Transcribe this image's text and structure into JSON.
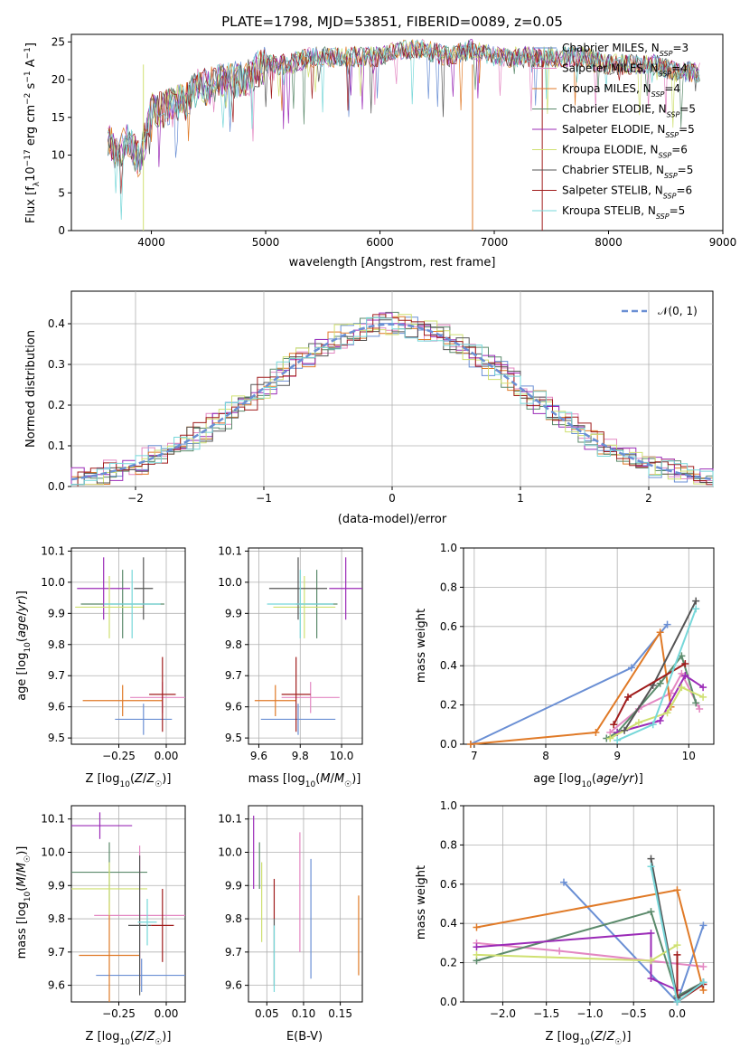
{
  "chart_data": [
    {
      "type": "line",
      "title": "PLATE=1798, MJD=53851, FIBERID=0089, z=0.05",
      "xlabel": "wavelength [Angstrom, rest frame]",
      "ylabel": "Flux [f$_\\lambda$10$^{-17}$ erg cm$^{-2}$ s$^{-1}$ A$^{-1}$]",
      "xlim": [
        3300,
        9000
      ],
      "ylim": [
        0,
        26
      ],
      "xticks": [
        4000,
        5000,
        6000,
        7000,
        8000,
        9000
      ],
      "yticks": [
        0,
        5,
        10,
        15,
        20,
        25
      ],
      "legend_position": "right",
      "note_series": "model spectra, approximate envelope",
      "wave": [
        3600,
        3700,
        3800,
        3900,
        4000,
        4100,
        4200,
        4300,
        4400,
        4500,
        4600,
        4700,
        4800,
        4900,
        5000,
        5200,
        5400,
        5600,
        5800,
        6000,
        6200,
        6400,
        6600,
        6800,
        7000,
        7200,
        7400,
        7600,
        7800,
        8000,
        8200,
        8400,
        8600,
        8800
      ],
      "flux": [
        13,
        10,
        12,
        9,
        16,
        16,
        17,
        17,
        19,
        19,
        20,
        20,
        20,
        21,
        22,
        22,
        23,
        23,
        23,
        23,
        24,
        24,
        23,
        24,
        23,
        23,
        23,
        23,
        23,
        22,
        22,
        22,
        21,
        21
      ],
      "series": [
        {
          "name": "Chabrier MILES, N$_{SSP}$=3",
          "color": "#6a8fd4"
        },
        {
          "name": "Salpeter MILES, N$_{SSP}$=4",
          "color": "#e387c2"
        },
        {
          "name": "Kroupa MILES, N$_{SSP}$=4",
          "color": "#e07a27"
        },
        {
          "name": "Chabrier ELODIE, N$_{SSP}$=5",
          "color": "#5b8a6b"
        },
        {
          "name": "Salpeter ELODIE, N$_{SSP}$=5",
          "color": "#9b2bb7"
        },
        {
          "name": "Kroupa ELODIE, N$_{SSP}$=6",
          "color": "#cfe071"
        },
        {
          "name": "Chabrier STELIB, N$_{SSP}$=5",
          "color": "#555555"
        },
        {
          "name": "Salpeter STELIB, N$_{SSP}$=6",
          "color": "#a01c1c"
        },
        {
          "name": "Kroupa STELIB, N$_{SSP}$=5",
          "color": "#76d7d9"
        }
      ]
    },
    {
      "type": "line",
      "xlabel": "(data-model)/error",
      "ylabel": "Normed distribution",
      "xlim": [
        -2.5,
        2.5
      ],
      "ylim": [
        0,
        0.48
      ],
      "xticks": [
        -2,
        -1,
        0,
        1,
        2
      ],
      "yticks": [
        0.0,
        0.1,
        0.2,
        0.3,
        0.4
      ],
      "legend": "$\\mathcal{N}(0,1)$",
      "legend_position": "top-right",
      "grid": true,
      "bin_centers": [
        -2.4,
        -2.2,
        -2.0,
        -1.8,
        -1.6,
        -1.4,
        -1.2,
        -1.0,
        -0.8,
        -0.6,
        -0.4,
        -0.2,
        0.0,
        0.2,
        0.4,
        0.6,
        0.8,
        1.0,
        1.2,
        1.4,
        1.6,
        1.8,
        2.0,
        2.2,
        2.4
      ],
      "hist_values": [
        0.02,
        0.04,
        0.06,
        0.08,
        0.12,
        0.17,
        0.21,
        0.25,
        0.3,
        0.34,
        0.37,
        0.39,
        0.41,
        0.4,
        0.4,
        0.36,
        0.33,
        0.28,
        0.22,
        0.17,
        0.13,
        0.09,
        0.06,
        0.04,
        0.03
      ]
    },
    {
      "type": "scatter",
      "xlabel": "Z [log$_{10}$($Z/Z_\\odot$)]",
      "ylabel": "age  [log$_{10}$($age/yr$)]",
      "xlim": [
        -0.5,
        0.1
      ],
      "ylim": [
        9.48,
        10.11
      ],
      "xticks": [
        -0.25,
        0.0
      ],
      "yticks": [
        9.5,
        9.6,
        9.7,
        9.8,
        9.9,
        10.0,
        10.1
      ],
      "grid": true,
      "points": [
        {
          "x": -0.12,
          "y": 9.56,
          "xerr": 0.15,
          "yerr": 0.05
        },
        {
          "x": -0.02,
          "y": 9.63,
          "xerr": 0.17,
          "yerr": 0.05
        },
        {
          "x": -0.23,
          "y": 9.62,
          "xerr": 0.21,
          "yerr": 0.05
        },
        {
          "x": -0.23,
          "y": 9.93,
          "xerr": 0.22,
          "yerr": 0.11
        },
        {
          "x": -0.33,
          "y": 9.98,
          "xerr": 0.14,
          "yerr": 0.1
        },
        {
          "x": -0.3,
          "y": 9.92,
          "xerr": 0.18,
          "yerr": 0.1
        },
        {
          "x": -0.12,
          "y": 9.98,
          "xerr": 0.05,
          "yerr": 0.1
        },
        {
          "x": -0.02,
          "y": 9.64,
          "xerr": 0.07,
          "yerr": 0.12
        },
        {
          "x": -0.18,
          "y": 9.93,
          "xerr": 0.15,
          "yerr": 0.11
        }
      ]
    },
    {
      "type": "scatter",
      "xlabel": "mass [log$_{10}$($M/M_\\odot$)]",
      "ylabel": "",
      "xlim": [
        9.55,
        10.1
      ],
      "ylim": [
        9.48,
        10.11
      ],
      "xticks": [
        9.6,
        9.8,
        10.0
      ],
      "yticks": [
        9.5,
        9.6,
        9.7,
        9.8,
        9.9,
        10.0,
        10.1
      ],
      "grid": true,
      "points": [
        {
          "x": 9.79,
          "y": 9.56,
          "xerr": 0.18,
          "yerr": 0.05
        },
        {
          "x": 9.85,
          "y": 9.63,
          "xerr": 0.14,
          "yerr": 0.05
        },
        {
          "x": 9.68,
          "y": 9.62,
          "xerr": 0.1,
          "yerr": 0.05
        },
        {
          "x": 9.88,
          "y": 9.93,
          "xerr": 0.1,
          "yerr": 0.11
        },
        {
          "x": 10.02,
          "y": 9.98,
          "xerr": 0.08,
          "yerr": 0.1
        },
        {
          "x": 9.82,
          "y": 9.92,
          "xerr": 0.15,
          "yerr": 0.1
        },
        {
          "x": 9.79,
          "y": 9.98,
          "xerr": 0.14,
          "yerr": 0.1
        },
        {
          "x": 9.78,
          "y": 9.64,
          "xerr": 0.07,
          "yerr": 0.12
        },
        {
          "x": 9.8,
          "y": 9.93,
          "xerr": 0.16,
          "yerr": 0.11
        }
      ]
    },
    {
      "type": "line",
      "xlabel": "age  [log$_{10}$($age/yr$)]",
      "ylabel": "mass weight",
      "xlim": [
        6.85,
        10.35
      ],
      "ylim": [
        0,
        1
      ],
      "xticks": [
        7,
        8,
        9,
        10
      ],
      "yticks": [
        0.0,
        0.2,
        0.4,
        0.6,
        0.8,
        1.0
      ],
      "grid": true,
      "series": [
        {
          "x": [
            6.95,
            9.2,
            9.7
          ],
          "y": [
            0.0,
            0.39,
            0.61
          ]
        },
        {
          "x": [
            8.9,
            9.3,
            9.75,
            9.9,
            10.15
          ],
          "y": [
            0.06,
            0.18,
            0.26,
            0.36,
            0.18
          ]
        },
        {
          "x": [
            6.95,
            8.7,
            9.6,
            9.75
          ],
          "y": [
            0.0,
            0.06,
            0.57,
            0.19
          ]
        },
        {
          "x": [
            8.85,
            9.0,
            9.6,
            9.9,
            10.1
          ],
          "y": [
            0.03,
            0.06,
            0.31,
            0.45,
            0.21
          ]
        },
        {
          "x": [
            9.0,
            9.6,
            9.95,
            10.2
          ],
          "y": [
            0.06,
            0.12,
            0.35,
            0.29
          ]
        },
        {
          "x": [
            8.9,
            9.3,
            9.7,
            9.9,
            10.2
          ],
          "y": [
            0.03,
            0.11,
            0.16,
            0.29,
            0.24
          ]
        },
        {
          "x": [
            9.1,
            9.5,
            10.1
          ],
          "y": [
            0.07,
            0.3,
            0.73
          ]
        },
        {
          "x": [
            8.95,
            9.15,
            9.95
          ],
          "y": [
            0.1,
            0.24,
            0.41
          ]
        },
        {
          "x": [
            9.0,
            9.5,
            10.1
          ],
          "y": [
            0.02,
            0.1,
            0.69
          ]
        }
      ]
    },
    {
      "type": "scatter",
      "xlabel": "Z [log$_{10}$($Z/Z_\\odot$)]",
      "ylabel": "mass [log$_{10}$($M/M_\\odot$)]",
      "xlim": [
        -0.5,
        0.1
      ],
      "ylim": [
        9.55,
        10.14
      ],
      "xticks": [
        -0.25,
        0.0
      ],
      "yticks": [
        9.6,
        9.7,
        9.8,
        9.9,
        10.0,
        10.1
      ],
      "grid": true,
      "points": [
        {
          "x": -0.13,
          "y": 9.63,
          "xerr": 0.24,
          "yerr": 0.05
        },
        {
          "x": -0.14,
          "y": 9.81,
          "xerr": 0.24,
          "yerr": 0.21
        },
        {
          "x": -0.3,
          "y": 9.69,
          "xerr": 0.16,
          "yerr": 0.16
        },
        {
          "x": -0.3,
          "y": 9.94,
          "xerr": 0.2,
          "yerr": 0.09
        },
        {
          "x": -0.35,
          "y": 10.08,
          "xerr": 0.17,
          "yerr": 0.04
        },
        {
          "x": -0.3,
          "y": 9.89,
          "xerr": 0.2,
          "yerr": 0.08
        },
        {
          "x": -0.14,
          "y": 9.78,
          "xerr": 0.06,
          "yerr": 0.21
        },
        {
          "x": -0.02,
          "y": 9.78,
          "xerr": 0.06,
          "yerr": 0.11
        },
        {
          "x": -0.1,
          "y": 9.79,
          "xerr": 0.05,
          "yerr": 0.07
        }
      ]
    },
    {
      "type": "scatter",
      "xlabel": "E(B-V)",
      "ylabel": "",
      "xlim": [
        0.025,
        0.18
      ],
      "ylim": [
        9.55,
        10.14
      ],
      "xticks": [
        0.05,
        0.1,
        0.15
      ],
      "yticks": [
        9.6,
        9.7,
        9.8,
        9.9,
        10.0,
        10.1
      ],
      "grid": true,
      "points": [
        {
          "x": 0.11,
          "y": 9.8,
          "yerr": 0.18
        },
        {
          "x": 0.095,
          "y": 9.88,
          "yerr": 0.18
        },
        {
          "x": 0.175,
          "y": 9.75,
          "yerr": 0.12
        },
        {
          "x": 0.04,
          "y": 9.96,
          "yerr": 0.07
        },
        {
          "x": 0.032,
          "y": 10.0,
          "yerr": 0.11
        },
        {
          "x": 0.043,
          "y": 9.85,
          "yerr": 0.12
        },
        {
          "x": 0.06,
          "y": 9.7,
          "yerr": 0.1
        },
        {
          "x": 0.06,
          "y": 9.86,
          "yerr": 0.06
        },
        {
          "x": 0.06,
          "y": 9.68,
          "yerr": 0.1
        }
      ]
    },
    {
      "type": "line",
      "xlabel": "Z [log$_{10}$($Z/Z_\\odot$)]",
      "ylabel": "mass weight",
      "xlim": [
        -2.45,
        0.42
      ],
      "ylim": [
        0,
        1
      ],
      "xticks": [
        -2.0,
        -1.5,
        -1.0,
        -0.5,
        0.0
      ],
      "yticks": [
        0.0,
        0.2,
        0.4,
        0.6,
        0.8,
        1.0
      ],
      "grid": true,
      "series": [
        {
          "x": [
            -1.3,
            0.0,
            0.3
          ],
          "y": [
            0.61,
            0.0,
            0.39
          ]
        },
        {
          "x": [
            -2.3,
            -1.35,
            0.3
          ],
          "y": [
            0.3,
            0.26,
            0.18
          ]
        },
        {
          "x": [
            -2.3,
            0.0,
            0.3
          ],
          "y": [
            0.38,
            0.57,
            0.06
          ]
        },
        {
          "x": [
            -2.3,
            -0.3,
            0.0,
            0.3
          ],
          "y": [
            0.21,
            0.46,
            0.03,
            0.1
          ]
        },
        {
          "x": [
            -2.3,
            -0.3,
            -0.3,
            0.0
          ],
          "y": [
            0.28,
            0.35,
            0.12,
            0.06
          ]
        },
        {
          "x": [
            -2.3,
            -0.3,
            0.0
          ],
          "y": [
            0.24,
            0.21,
            0.29
          ]
        },
        {
          "x": [
            -0.3,
            0.0,
            0.3
          ],
          "y": [
            0.73,
            0.02,
            0.1
          ]
        },
        {
          "x": [
            0.0,
            0.0,
            0.3
          ],
          "y": [
            0.24,
            0.0,
            0.09
          ]
        },
        {
          "x": [
            -0.3,
            0.0,
            0.3
          ],
          "y": [
            0.69,
            0.0,
            0.1
          ]
        }
      ]
    }
  ]
}
